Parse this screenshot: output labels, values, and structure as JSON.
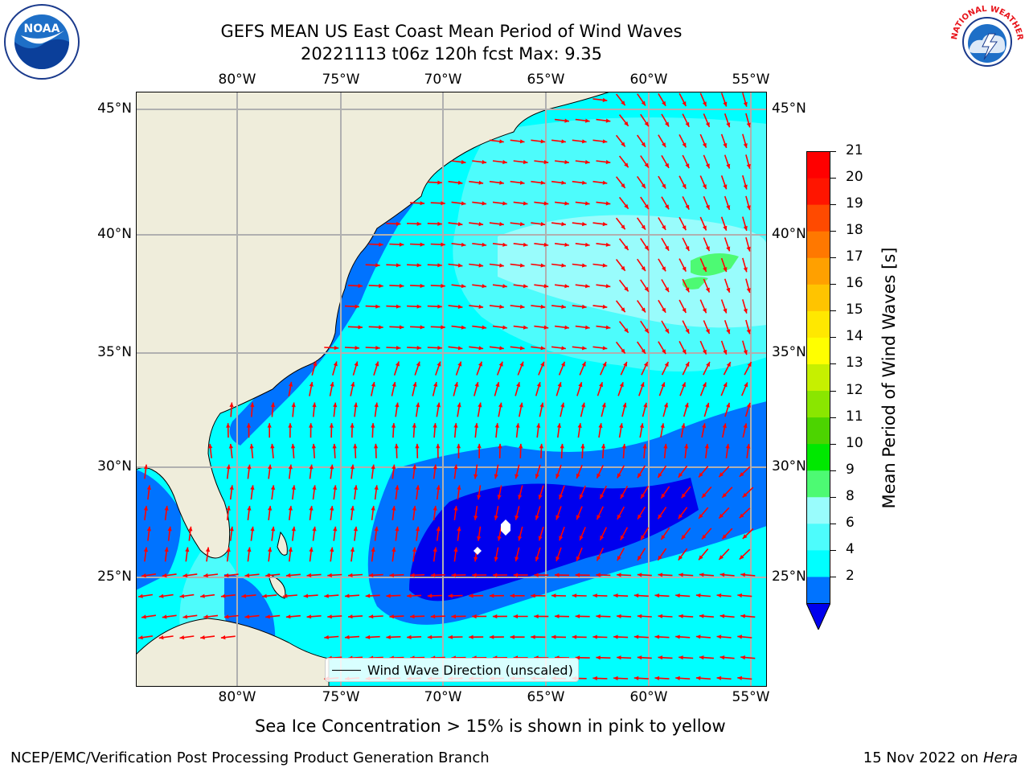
{
  "title": {
    "line1": "GEFS MEAN US East Coast Mean Period of Wind Waves",
    "line2": "20221113 t06z 120h fcst   Max: 9.35"
  },
  "map": {
    "lon_ticks": [
      "80°W",
      "75°W",
      "70°W",
      "65°W",
      "60°W",
      "55°W"
    ],
    "lat_ticks": [
      "45°N",
      "40°N",
      "35°N",
      "30°N",
      "25°N"
    ],
    "lon_range": [
      -85,
      -54.5
    ],
    "lat_range": [
      20.5,
      46
    ],
    "legend": "Wind Wave Direction (unscaled)",
    "arrow_color": "#ff0000",
    "land_color": "#efeddb"
  },
  "colorbar": {
    "label": "Mean Period of Wind Waves [s]",
    "ticks": [
      "21",
      "20",
      "19",
      "18",
      "17",
      "16",
      "15",
      "14",
      "13",
      "12",
      "11",
      "10",
      "9",
      "8",
      "6",
      "4",
      "2"
    ],
    "colors": [
      "#0000ee",
      "#0073ff",
      "#00ffff",
      "#4dfcfc",
      "#99fcfc",
      "#4dfa73",
      "#00e800",
      "#4cd400",
      "#8ae600",
      "#c6f000",
      "#ffff00",
      "#ffe800",
      "#ffc400",
      "#ffa000",
      "#ff7800",
      "#ff4a00",
      "#ff1500",
      "#ff0000"
    ]
  },
  "note": "Sea Ice Concentration > 15% is shown in pink to yellow",
  "footer": {
    "left": "NCEP/EMC/Verification Post Processing Product Generation Branch",
    "right_date": "15 Nov 2022 on",
    "right_host": "Hera"
  },
  "logos": {
    "noaa_text": "NOAA",
    "nws_text": "NATIONAL WEATHER SERVICE"
  }
}
